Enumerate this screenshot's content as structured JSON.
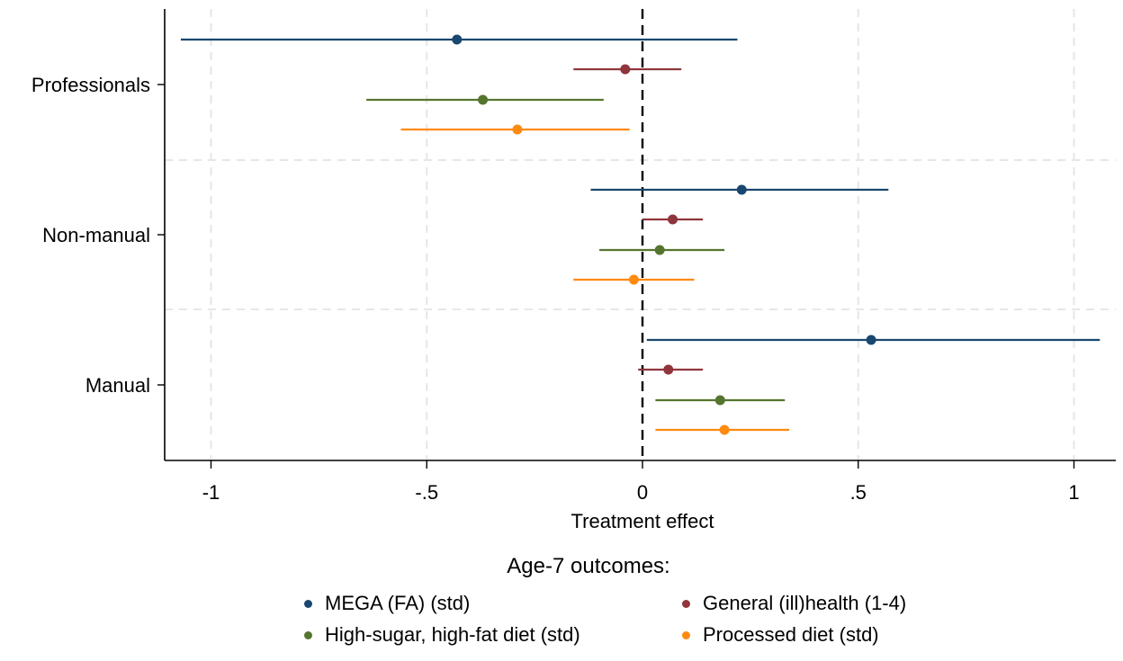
{
  "chart_data": {
    "type": "scatter",
    "subtype": "coefficient-plot-with-confidence-intervals",
    "title": "",
    "xlabel": "Treatment effect",
    "ylabel": "",
    "xlim": [
      -1.1,
      1.1
    ],
    "x_ticks": [
      -1,
      -0.5,
      0,
      0.5,
      1
    ],
    "x_tick_labels": [
      "-1",
      "-.5",
      "0",
      ".5",
      "1"
    ],
    "reference_line": {
      "x": 0,
      "style": "dashed"
    },
    "grid": true,
    "categories": [
      "Professionals",
      "Non-manual",
      "Manual"
    ],
    "legend": {
      "title": "Age-7 outcomes:",
      "position": "bottom",
      "columns": 2
    },
    "series": [
      {
        "name": "MEGA (FA) (std)",
        "color": "#1a476f",
        "points": [
          {
            "category": "Professionals",
            "estimate": -0.43,
            "ci_low": -1.07,
            "ci_high": 0.22
          },
          {
            "category": "Non-manual",
            "estimate": 0.23,
            "ci_low": -0.12,
            "ci_high": 0.57
          },
          {
            "category": "Manual",
            "estimate": 0.53,
            "ci_low": 0.01,
            "ci_high": 1.06
          }
        ]
      },
      {
        "name": "General (ill)health (1-4)",
        "color": "#90353b",
        "points": [
          {
            "category": "Professionals",
            "estimate": -0.04,
            "ci_low": -0.16,
            "ci_high": 0.09
          },
          {
            "category": "Non-manual",
            "estimate": 0.07,
            "ci_low": 0.0,
            "ci_high": 0.14
          },
          {
            "category": "Manual",
            "estimate": 0.06,
            "ci_low": -0.01,
            "ci_high": 0.14
          }
        ]
      },
      {
        "name": "High-sugar, high-fat diet (std)",
        "color": "#55752f",
        "points": [
          {
            "category": "Professionals",
            "estimate": -0.37,
            "ci_low": -0.64,
            "ci_high": -0.09
          },
          {
            "category": "Non-manual",
            "estimate": 0.04,
            "ci_low": -0.1,
            "ci_high": 0.19
          },
          {
            "category": "Manual",
            "estimate": 0.18,
            "ci_low": 0.03,
            "ci_high": 0.33
          }
        ]
      },
      {
        "name": "Processed diet (std)",
        "color": "#ff8a10",
        "points": [
          {
            "category": "Professionals",
            "estimate": -0.29,
            "ci_low": -0.56,
            "ci_high": -0.03
          },
          {
            "category": "Non-manual",
            "estimate": -0.02,
            "ci_low": -0.16,
            "ci_high": 0.12
          },
          {
            "category": "Manual",
            "estimate": 0.19,
            "ci_low": 0.03,
            "ci_high": 0.34
          }
        ]
      }
    ]
  }
}
